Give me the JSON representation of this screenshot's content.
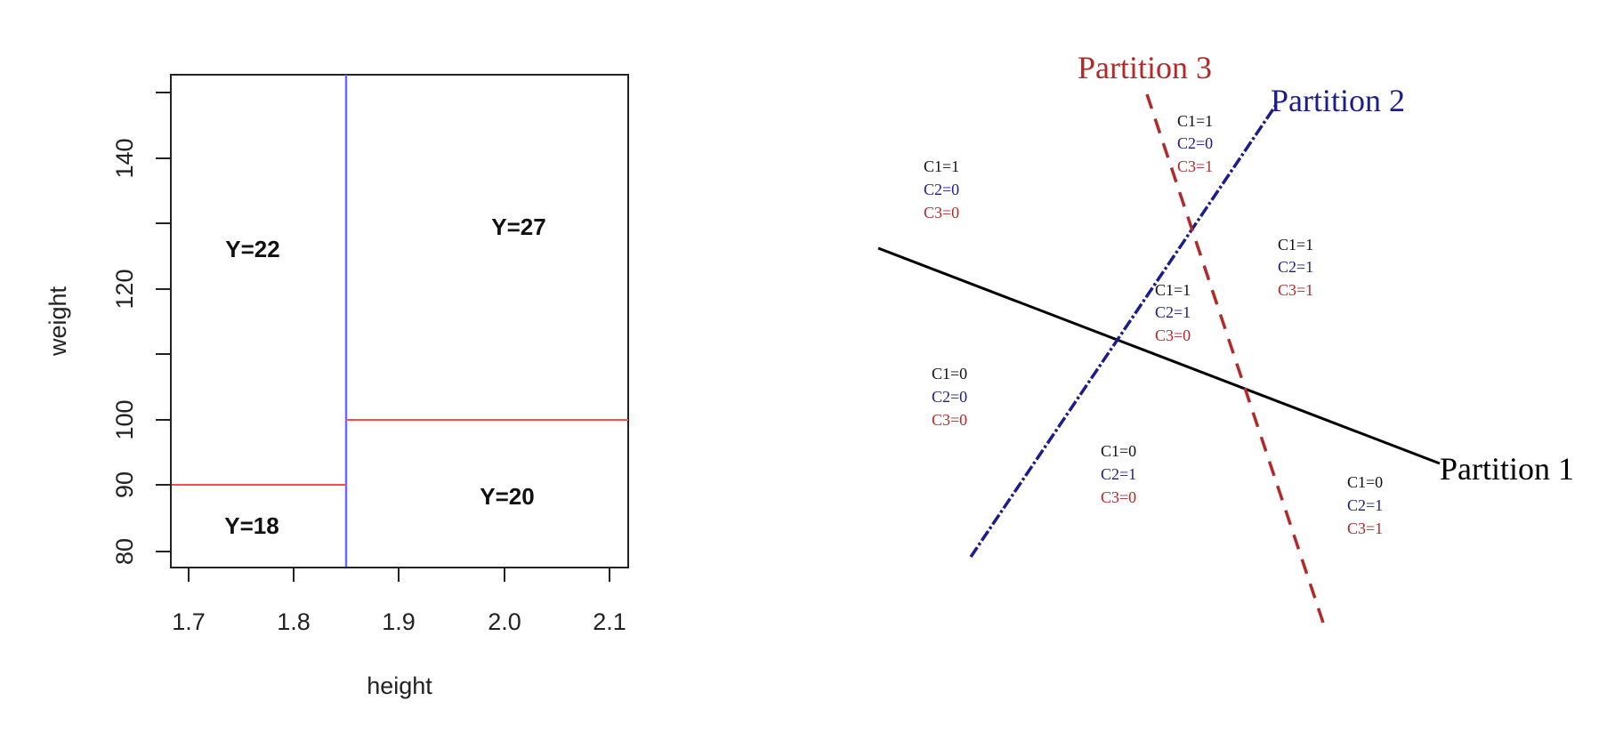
{
  "left_panel": {
    "xlabel": "height",
    "ylabel": "weight",
    "x_ticks": [
      "1.7",
      "1.8",
      "1.9",
      "2.0",
      "2.1"
    ],
    "y_ticks": [
      "80",
      "90",
      "100",
      "120",
      "140"
    ],
    "region_labels": [
      "Y=22",
      "Y=27",
      "Y=18",
      "Y=20"
    ],
    "split_colors": {
      "vertical": "#6a6aff",
      "horizontal": "#ff4a4a"
    }
  },
  "right_panel": {
    "partitions": [
      {
        "name": "Partition 1",
        "color": "#000000",
        "style": "solid"
      },
      {
        "name": "Partition 2",
        "color": "#1c1c8c",
        "style": "dash-dot"
      },
      {
        "name": "Partition 3",
        "color": "#b02a2a",
        "style": "dashed"
      }
    ],
    "regions": [
      {
        "c1": "C1=1",
        "c2": "C2=0",
        "c3": "C3=0"
      },
      {
        "c1": "C1=1",
        "c2": "C2=0",
        "c3": "C3=1"
      },
      {
        "c1": "C1=1",
        "c2": "C2=1",
        "c3": "C3=1"
      },
      {
        "c1": "C1=1",
        "c2": "C2=1",
        "c3": "C3=0"
      },
      {
        "c1": "C1=0",
        "c2": "C2=0",
        "c3": "C3=0"
      },
      {
        "c1": "C1=0",
        "c2": "C2=1",
        "c3": "C3=0"
      },
      {
        "c1": "C1=0",
        "c2": "C2=1",
        "c3": "C3=1"
      }
    ]
  }
}
